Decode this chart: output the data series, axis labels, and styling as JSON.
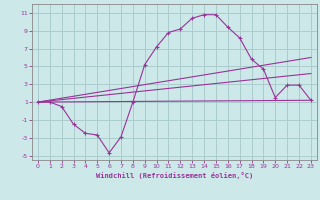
{
  "xlabel": "Windchill (Refroidissement éolien,°C)",
  "bg_color": "#cce8e8",
  "grid_color": "#aacccc",
  "line_color": "#993399",
  "xlim": [
    -0.5,
    23.5
  ],
  "ylim": [
    -5.5,
    12
  ],
  "yticks": [
    -5,
    -3,
    -1,
    1,
    3,
    5,
    7,
    9,
    11
  ],
  "xticks": [
    0,
    1,
    2,
    3,
    4,
    5,
    6,
    7,
    8,
    9,
    10,
    11,
    12,
    13,
    14,
    15,
    16,
    17,
    18,
    19,
    20,
    21,
    22,
    23
  ],
  "series1_x": [
    0,
    1,
    2,
    3,
    4,
    5,
    6,
    7,
    8,
    9,
    10,
    11,
    12,
    13,
    14,
    15,
    16,
    17,
    18,
    19,
    20,
    21,
    22,
    23
  ],
  "series1_y": [
    1,
    1,
    0.5,
    -1.5,
    -2.5,
    -2.7,
    -4.7,
    -2.9,
    1,
    5.2,
    7.2,
    8.8,
    9.2,
    10.4,
    10.8,
    10.8,
    9.4,
    8.2,
    5.8,
    4.7,
    1.5,
    2.9,
    2.9,
    1.2
  ],
  "series2_x": [
    0,
    23
  ],
  "series2_y": [
    1,
    6.0
  ],
  "series3_x": [
    0,
    23
  ],
  "series3_y": [
    1,
    4.2
  ],
  "series4_x": [
    0,
    23
  ],
  "series4_y": [
    1,
    1.2
  ]
}
